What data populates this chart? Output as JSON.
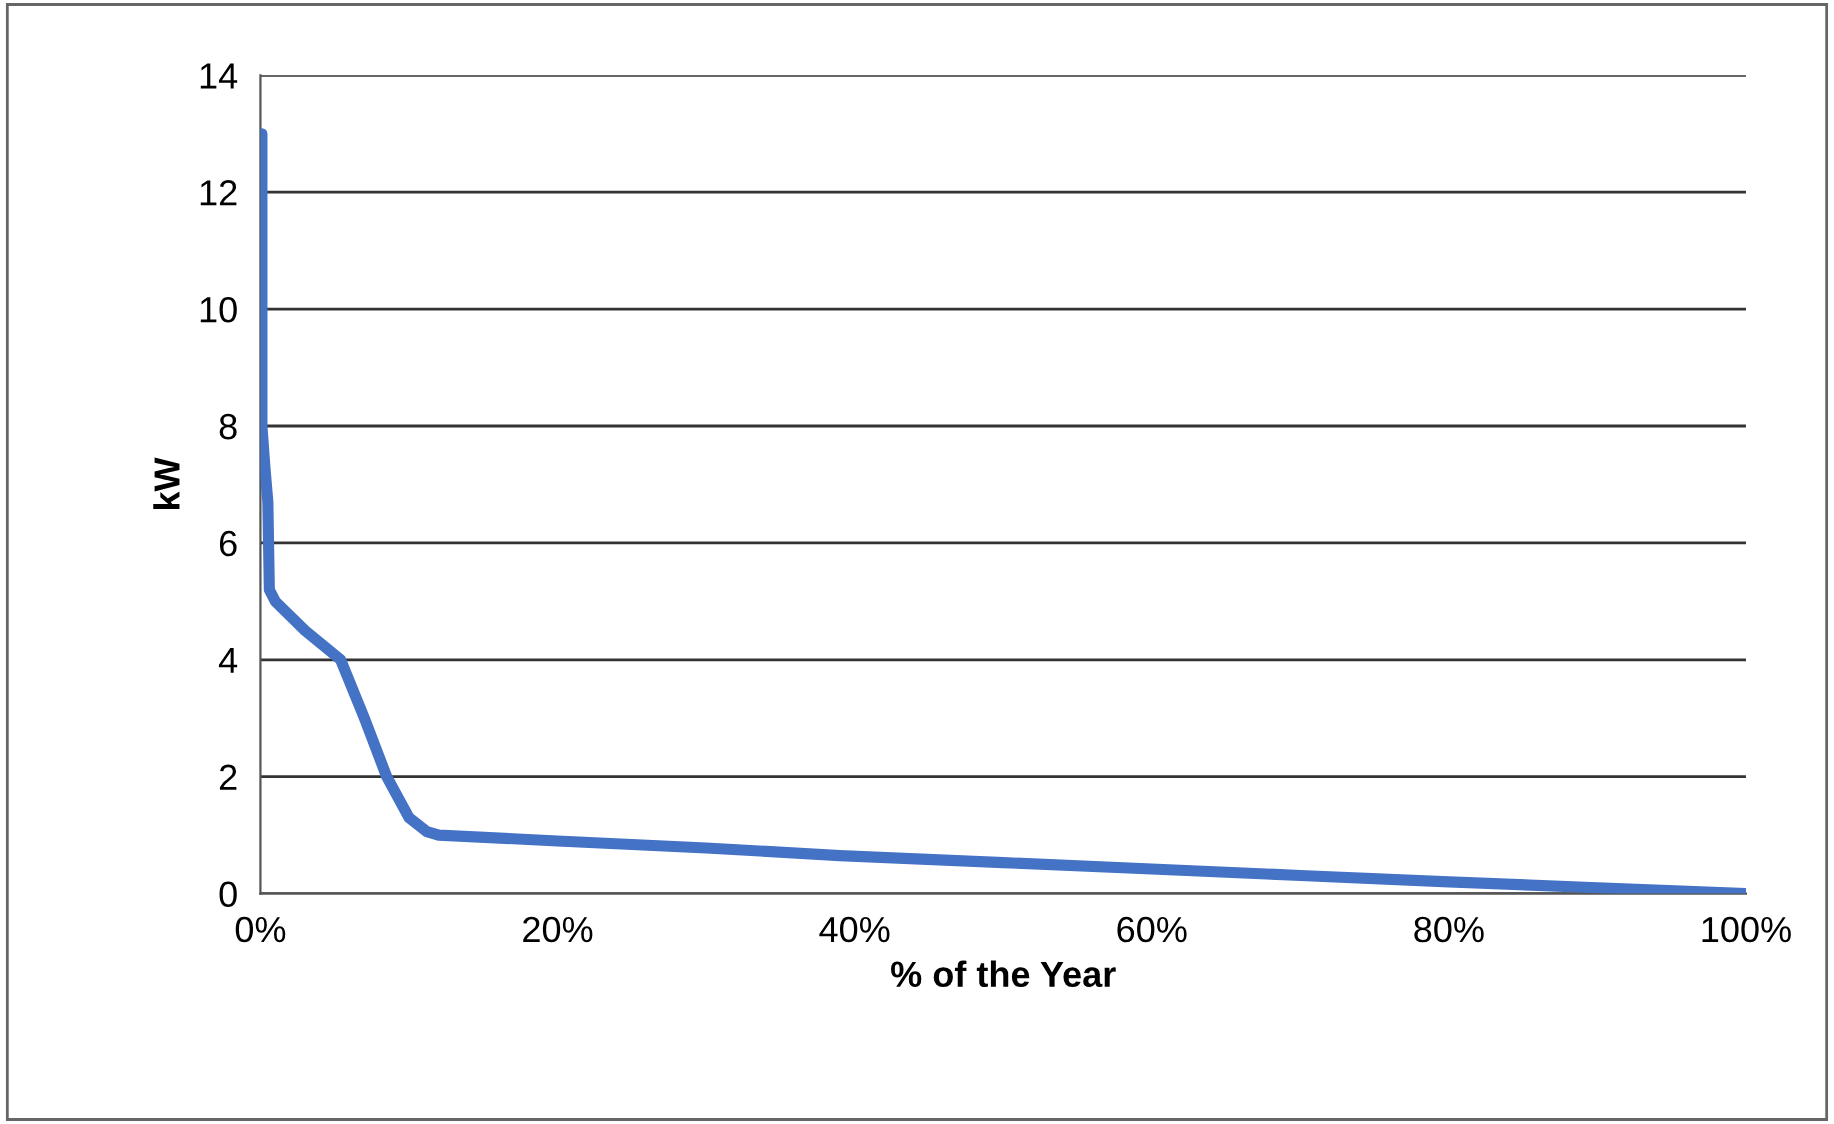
{
  "chart_data": {
    "type": "line",
    "xlabel": "% of the Year",
    "ylabel": "kW",
    "series": [
      {
        "color": "#4472c4",
        "x": [
          0.1,
          0.1,
          0.3,
          0.5,
          0.6,
          1,
          3,
          5.4,
          7,
          8.5,
          10,
          11.2,
          12,
          20,
          30,
          39,
          50,
          60,
          70,
          80,
          90,
          100
        ],
        "values": [
          13.0,
          8.0,
          7.3,
          6.7,
          5.2,
          5.0,
          4.5,
          4.0,
          3.0,
          2.0,
          1.3,
          1.06,
          1.0,
          0.9,
          0.78,
          0.65,
          0.53,
          0.42,
          0.31,
          0.2,
          0.1,
          0.0
        ]
      }
    ],
    "xlim": [
      0,
      100
    ],
    "ylim": [
      0,
      14
    ],
    "xticks": [
      {
        "value": 0,
        "label": "0%"
      },
      {
        "value": 20,
        "label": "20%"
      },
      {
        "value": 40,
        "label": "40%"
      },
      {
        "value": 60,
        "label": "60%"
      },
      {
        "value": 80,
        "label": "80%"
      },
      {
        "value": 100,
        "label": "100%"
      }
    ],
    "yticks": [
      0,
      2,
      4,
      6,
      8,
      10,
      12,
      14
    ],
    "grid": "y",
    "marker": "none",
    "line_style": "solid"
  }
}
